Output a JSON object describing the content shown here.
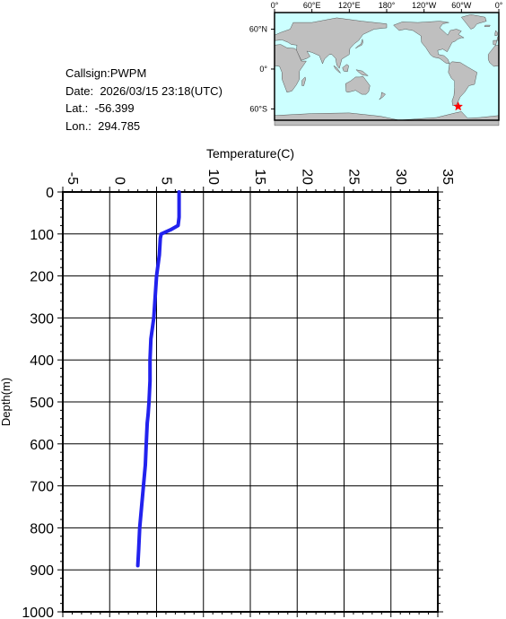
{
  "info": {
    "callsign_label": "Callsign:",
    "callsign": "PWPM",
    "date_label": "Date:",
    "date": "2026/03/15 23:18(UTC)",
    "lat_label": "Lat.:",
    "lat": "-56.399",
    "lon_label": "Lon.:",
    "lon": "294.785"
  },
  "map": {
    "lon_ticks": [
      "0°",
      "60°E",
      "120°E",
      "180°",
      "120°W",
      "60°W",
      "0°"
    ],
    "lat_ticks": [
      "60°N",
      "0°",
      "60°S"
    ],
    "ocean_color": "#ccffff",
    "land_color": "#bfbfbf",
    "marker_color": "#ff0000",
    "marker_lon": 294.785,
    "marker_lat": -56.399
  },
  "chart_data": {
    "type": "line",
    "xlabel": "Temperature(C)",
    "ylabel": "Depth(m)",
    "xlim": [
      -5,
      35
    ],
    "ylim": [
      0,
      1000
    ],
    "x_ticks": [
      "-5",
      "0",
      "5",
      "10",
      "15",
      "20",
      "25",
      "30",
      "35"
    ],
    "y_ticks": [
      "0",
      "100",
      "200",
      "300",
      "400",
      "500",
      "600",
      "700",
      "800",
      "900",
      "1000"
    ],
    "grid": true,
    "series_color": "#2222ee",
    "series": [
      {
        "x": [
          7.4,
          7.4,
          7.4,
          7.3,
          6.5,
          5.5,
          5.4,
          5.3,
          5.0,
          4.7,
          4.4,
          4.3,
          4.3,
          4.2,
          4.1,
          4.0,
          3.9,
          3.8,
          3.6,
          3.4,
          3.2,
          3.1,
          3.0
        ],
        "y": [
          0,
          20,
          60,
          80,
          90,
          100,
          110,
          150,
          200,
          300,
          350,
          400,
          450,
          500,
          530,
          550,
          600,
          650,
          700,
          750,
          800,
          850,
          890
        ]
      }
    ]
  }
}
